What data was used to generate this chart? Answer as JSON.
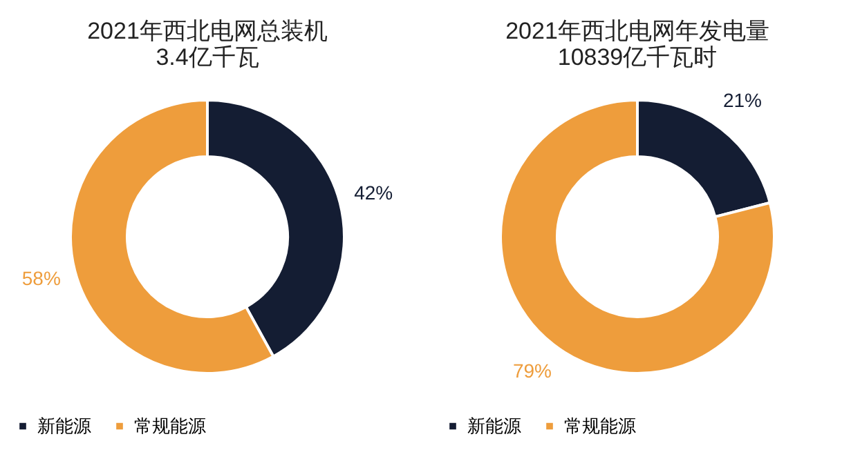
{
  "chart_data": [
    {
      "type": "donut",
      "title": "2021年西北电网总装机",
      "subtitle": "3.4亿千瓦",
      "categories": [
        "新能源",
        "常规能源"
      ],
      "values": [
        42,
        58
      ],
      "colors": [
        "#141d33",
        "#ee9d3c"
      ],
      "value_labels": [
        "42%",
        "58%"
      ],
      "legend": "bottom"
    },
    {
      "type": "donut",
      "title": "2021年西北电网年发电量",
      "subtitle": "10839亿千瓦时",
      "categories": [
        "新能源",
        "常规能源"
      ],
      "values": [
        21,
        79
      ],
      "colors": [
        "#141d33",
        "#ee9d3c"
      ],
      "value_labels": [
        "21%",
        "79%"
      ],
      "legend": "bottom"
    }
  ]
}
